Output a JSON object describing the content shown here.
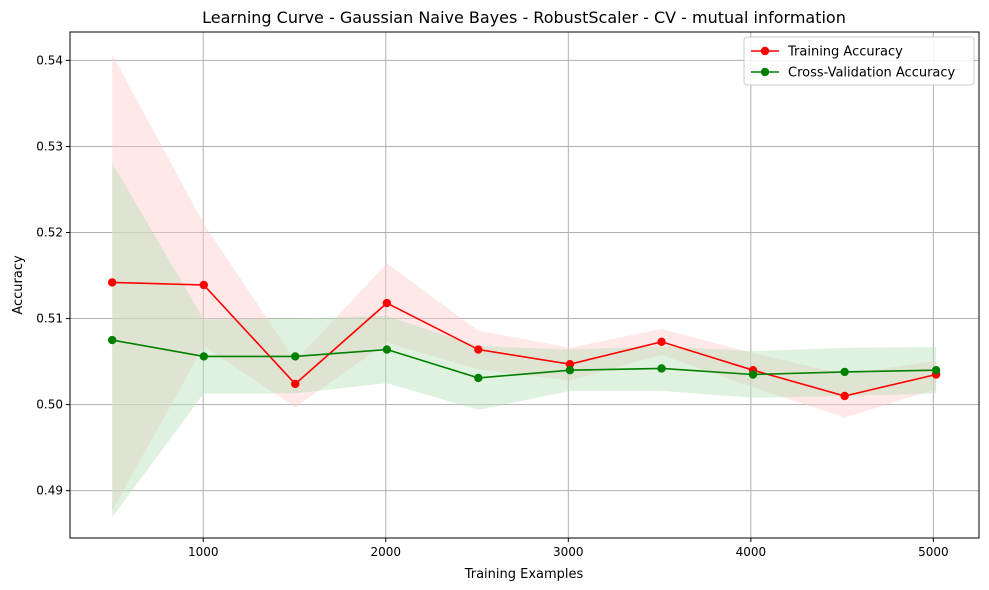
{
  "chart_data": {
    "type": "line",
    "title": "Learning Curve - Gaussian Naive Bayes - RobustScaler - CV - mutual information",
    "xlabel": "Training Examples",
    "ylabel": "Accuracy",
    "xlim": [
      270,
      5250
    ],
    "ylim": [
      0.4845,
      0.5433
    ],
    "x_ticks": [
      1000,
      2000,
      3000,
      4000,
      5000
    ],
    "y_ticks": [
      0.49,
      0.5,
      0.51,
      0.52,
      0.53,
      0.54
    ],
    "grid": true,
    "legend_position": "top-right",
    "x": [
      501,
      1003,
      1504,
      2006,
      2507,
      3009,
      3511,
      4012,
      4514,
      5015
    ],
    "series": [
      {
        "name": "Training Accuracy",
        "color": "#ff0000",
        "band_color": "#ffcccc",
        "values": [
          0.5142,
          0.5139,
          0.5024,
          0.5118,
          0.5064,
          0.5047,
          0.5073,
          0.504,
          0.501,
          0.5035
        ],
        "lower": [
          0.4877,
          0.5068,
          0.4997,
          0.5072,
          0.5041,
          0.5028,
          0.5058,
          0.502,
          0.4985,
          0.5018
        ],
        "upper": [
          0.5407,
          0.521,
          0.5051,
          0.5164,
          0.5086,
          0.5066,
          0.5088,
          0.506,
          0.5035,
          0.5051
        ]
      },
      {
        "name": "Cross-Validation Accuracy",
        "color": "#008000",
        "band_color": "#b8e0b8",
        "values": [
          0.5075,
          0.5056,
          0.5056,
          0.5064,
          0.5031,
          0.504,
          0.5042,
          0.5035,
          0.5038,
          0.504
        ],
        "lower": [
          0.4869,
          0.5013,
          0.5013,
          0.5025,
          0.4994,
          0.5016,
          0.5016,
          0.5008,
          0.501,
          0.5013
        ],
        "upper": [
          0.5281,
          0.5099,
          0.51,
          0.5103,
          0.5068,
          0.5064,
          0.5068,
          0.5062,
          0.5066,
          0.5067
        ]
      }
    ]
  }
}
